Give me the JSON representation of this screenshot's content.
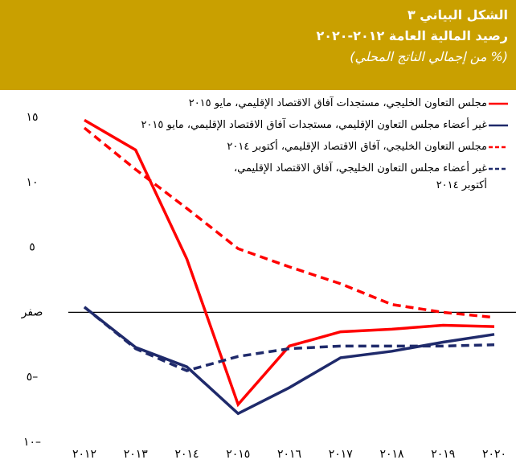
{
  "chart_data": {
    "type": "line",
    "title": "الشكل البياني ٣",
    "subtitle": "رصيد المالية العامة ٢٠١٢-٢٠٢٠",
    "y_label": "(% من إجمالي الناتج المحلي)",
    "categories": [
      "٢٠١٢",
      "٢٠١٣",
      "٢٠١٤",
      "٢٠١٥",
      "٢٠١٦",
      "٢٠١٧",
      "٢٠١٨",
      "٢٠١٩",
      "٢٠٢٠"
    ],
    "series": [
      {
        "name": "مجلس التعاون الخليجي،  مستجدات آفاق الاقتصاد الإقليمي، مايو ٢٠١٥",
        "color": "#ff0000",
        "dash": false,
        "values": [
          14.8,
          12.5,
          4.1,
          -7.1,
          -2.6,
          -1.5,
          -1.3,
          -1.0,
          -1.1
        ]
      },
      {
        "name": "غير أعضاء مجلس التعاون الإقليمي، مستجدات آفاق الاقتصاد الإقليمي، مايو ٢٠١٥",
        "color": "#1f2a6b",
        "dash": false,
        "values": [
          0.4,
          -2.7,
          -4.2,
          -7.8,
          -5.8,
          -3.5,
          -3.0,
          -2.3,
          -1.7
        ]
      },
      {
        "name": "مجلس التعاون الخليجي،  آفاق الاقتصاد الإقليمي، أكتوبر ٢٠١٤",
        "color": "#ff0000",
        "dash": true,
        "values": [
          14.2,
          11.0,
          8.0,
          4.9,
          3.5,
          2.2,
          0.6,
          0.0,
          -0.4
        ]
      },
      {
        "name": "غير أعضاء مجلس التعاون الخليجي، آفاق الاقتصاد الإقليمي،\nأكتوبر ٢٠١٤",
        "color": "#1f2a6b",
        "dash": true,
        "values": [
          0.4,
          -2.8,
          -4.5,
          -3.4,
          -2.8,
          -2.6,
          -2.6,
          -2.6,
          -2.5
        ]
      }
    ],
    "ylim": [
      -11,
      16
    ],
    "yticks": [
      {
        "value": 15,
        "label": "١٥"
      },
      {
        "value": 10,
        "label": "١٠"
      },
      {
        "value": 5,
        "label": "٥"
      },
      {
        "value": 0,
        "label": "صفر"
      },
      {
        "value": -5,
        "label": "٥–"
      },
      {
        "value": -10,
        "label": "١٠–"
      }
    ],
    "zero_line": true,
    "grid": false
  }
}
